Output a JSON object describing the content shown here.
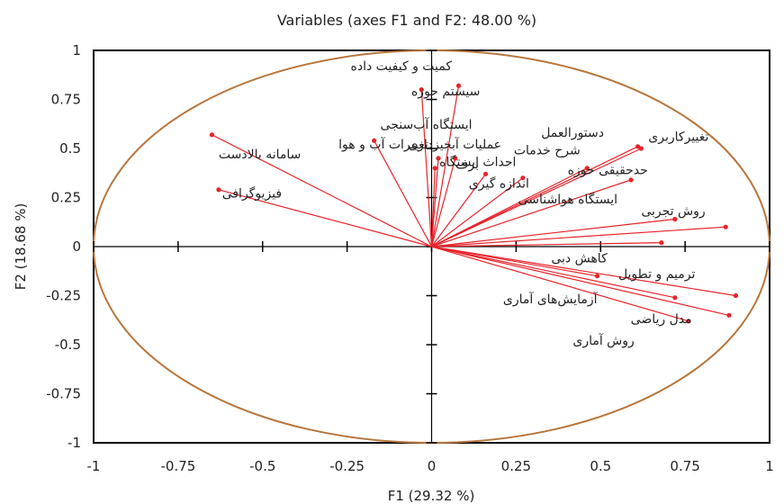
{
  "chart_data": {
    "type": "scatter",
    "title": "Variables (axes F1 and F2: 48.00 %)",
    "xlabel": "F1 (29.32 %)",
    "ylabel": "F2 (18.68 %)",
    "xlim": [
      -1,
      1
    ],
    "ylim": [
      -1,
      1
    ],
    "x_ticks": [
      "-1",
      "-0.75",
      "-0.5",
      "-0.25",
      "0",
      "0.25",
      "0.5",
      "0.75",
      "1"
    ],
    "y_ticks": [
      "1",
      "0.75",
      "0.5",
      "0.25",
      "0",
      "-0.25",
      "-0.5",
      "-0.75",
      "-1"
    ],
    "grid": false,
    "correlation_circle": true,
    "colors": {
      "vector": "#e8232a",
      "circle": "#b8763c",
      "axis": "#000000",
      "frame": "#000000"
    },
    "variables": [
      {
        "label": "کمیت و کیفیت داده",
        "x": 0.08,
        "y": 0.82,
        "anchor": "start",
        "lx": 0.06,
        "ly": 0.9
      },
      {
        "label": "سیستم حوزه",
        "x": -0.03,
        "y": 0.8,
        "anchor": "end",
        "lx": -0.06,
        "ly": 0.77
      },
      {
        "label": "سامانه بالادست",
        "x": -0.65,
        "y": 0.57,
        "anchor": "end",
        "lx": -0.63,
        "ly": 0.45
      },
      {
        "label": "عملیات آبخیزداری",
        "x": -0.17,
        "y": 0.54,
        "anchor": "end",
        "lx": -0.07,
        "ly": 0.5
      },
      {
        "label": "فیزیوگرافی",
        "x": -0.63,
        "y": 0.29,
        "anchor": "end",
        "lx": -0.62,
        "ly": 0.25
      },
      {
        "label": "ایستگاه آب‌سنجی",
        "x": 0.07,
        "y": 0.45,
        "anchor": "start",
        "lx": 0.12,
        "ly": 0.6
      },
      {
        "label": "تغییرات آب و هوا",
        "x": 0.02,
        "y": 0.45,
        "anchor": "start",
        "lx": -0.01,
        "ly": 0.5
      },
      {
        "label": "برف",
        "x": 0.16,
        "y": 0.37,
        "anchor": "start",
        "lx": 0.14,
        "ly": 0.4
      },
      {
        "label": "اندازه گیری",
        "x": 0.01,
        "y": 0.4,
        "anchor": "end",
        "lx": 0.11,
        "ly": 0.3
      },
      {
        "label": "احداث ایستگاه",
        "x": 0.27,
        "y": 0.35,
        "anchor": "start",
        "lx": 0.25,
        "ly": 0.41
      },
      {
        "label": "تغییرکاربری",
        "x": 0.62,
        "y": 0.5,
        "anchor": "start",
        "lx": 0.82,
        "ly": 0.54
      },
      {
        "label": "دستورالعمل",
        "x": 0.61,
        "y": 0.51,
        "anchor": "start",
        "lx": 0.51,
        "ly": 0.56
      },
      {
        "label": "شرح خدمات",
        "x": 0.46,
        "y": 0.4,
        "anchor": "start",
        "lx": 0.44,
        "ly": 0.47
      },
      {
        "label": "حدحقیقی حوزه",
        "x": 0.59,
        "y": 0.34,
        "anchor": "start",
        "lx": 0.64,
        "ly": 0.37
      },
      {
        "label": "ایستگاه هواشناسی",
        "x": 0.72,
        "y": 0.14,
        "anchor": "start",
        "lx": 0.55,
        "ly": 0.22
      },
      {
        "label": "روش تجربی",
        "x": 0.87,
        "y": 0.1,
        "anchor": "start",
        "lx": 0.81,
        "ly": 0.16
      },
      {
        "label": "کاهش دبی",
        "x": 0.68,
        "y": 0.02,
        "anchor": "start",
        "lx": 0.52,
        "ly": -0.08
      },
      {
        "label": "ترمیم و تطویل",
        "x": 0.9,
        "y": -0.25,
        "anchor": "start",
        "lx": 0.78,
        "ly": -0.16
      },
      {
        "label": "آزمایش‌های آماری",
        "x": 0.72,
        "y": -0.26,
        "anchor": "start",
        "lx": 0.49,
        "ly": -0.29
      },
      {
        "label": "مدل ریاضی",
        "x": 0.88,
        "y": -0.35,
        "anchor": "start",
        "lx": 0.77,
        "ly": -0.39
      },
      {
        "label": "روش آماری",
        "x": 0.76,
        "y": -0.38,
        "anchor": "start",
        "lx": 0.6,
        "ly": -0.5
      },
      {
        "label": "",
        "x": 0.49,
        "y": -0.15,
        "anchor": "start",
        "lx": 0.49,
        "ly": -0.15
      }
    ]
  }
}
